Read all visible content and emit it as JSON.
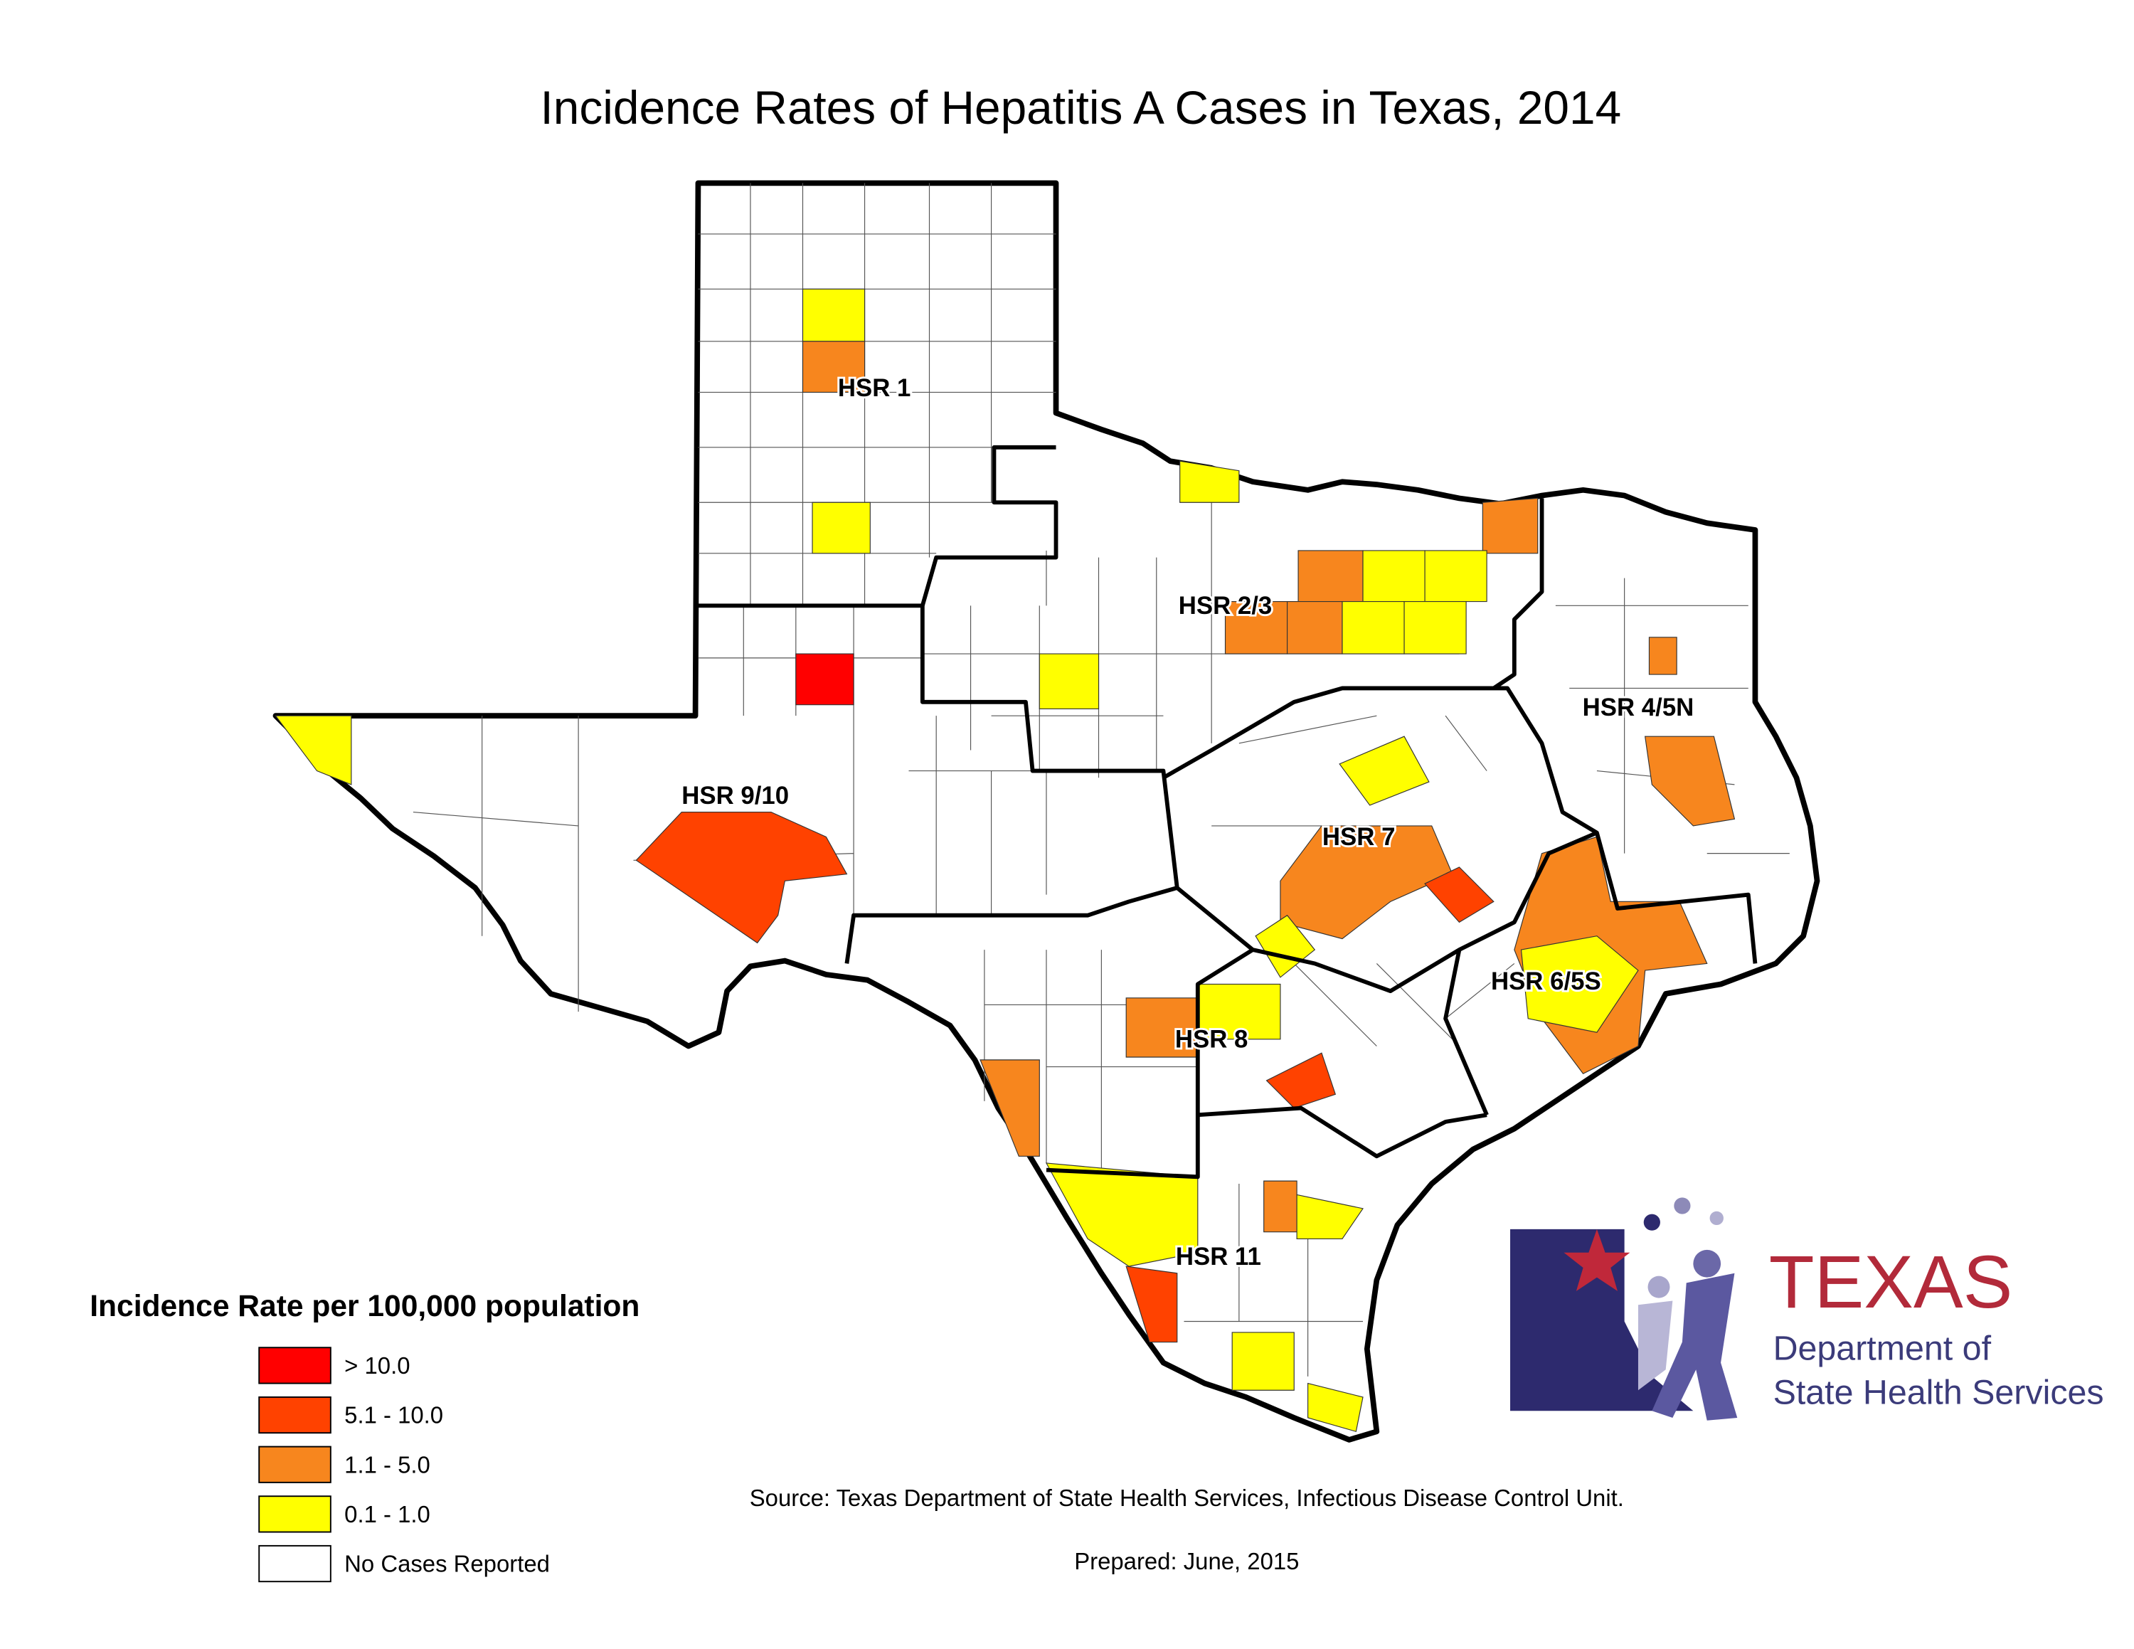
{
  "title": "Incidence Rates of Hepatitis A Cases in Texas, 2014",
  "regions": [
    {
      "label": "HSR 1"
    },
    {
      "label": "HSR 2/3"
    },
    {
      "label": "HSR 4/5N"
    },
    {
      "label": "HSR 9/10"
    },
    {
      "label": "HSR 7"
    },
    {
      "label": "HSR 6/5S"
    },
    {
      "label": "HSR 8"
    },
    {
      "label": "HSR 11"
    }
  ],
  "legend": {
    "title": "Incidence Rate per 100,000 population",
    "items": [
      {
        "label": "> 10.0",
        "color": "#ff0000"
      },
      {
        "label": "5.1 - 10.0",
        "color": "#ff4200"
      },
      {
        "label": "1.1 - 5.0",
        "color": "#f7861e"
      },
      {
        "label": "0.1 - 1.0",
        "color": "#ffff00"
      },
      {
        "label": "No Cases Reported",
        "color": "#ffffff"
      }
    ]
  },
  "source": "Source: Texas Department of State Health Services, Infectious Disease Control Unit.",
  "prepared": "Prepared: June, 2015",
  "logo": {
    "name": "TEXAS",
    "line1": "Department of",
    "line2": "State Health Services"
  }
}
